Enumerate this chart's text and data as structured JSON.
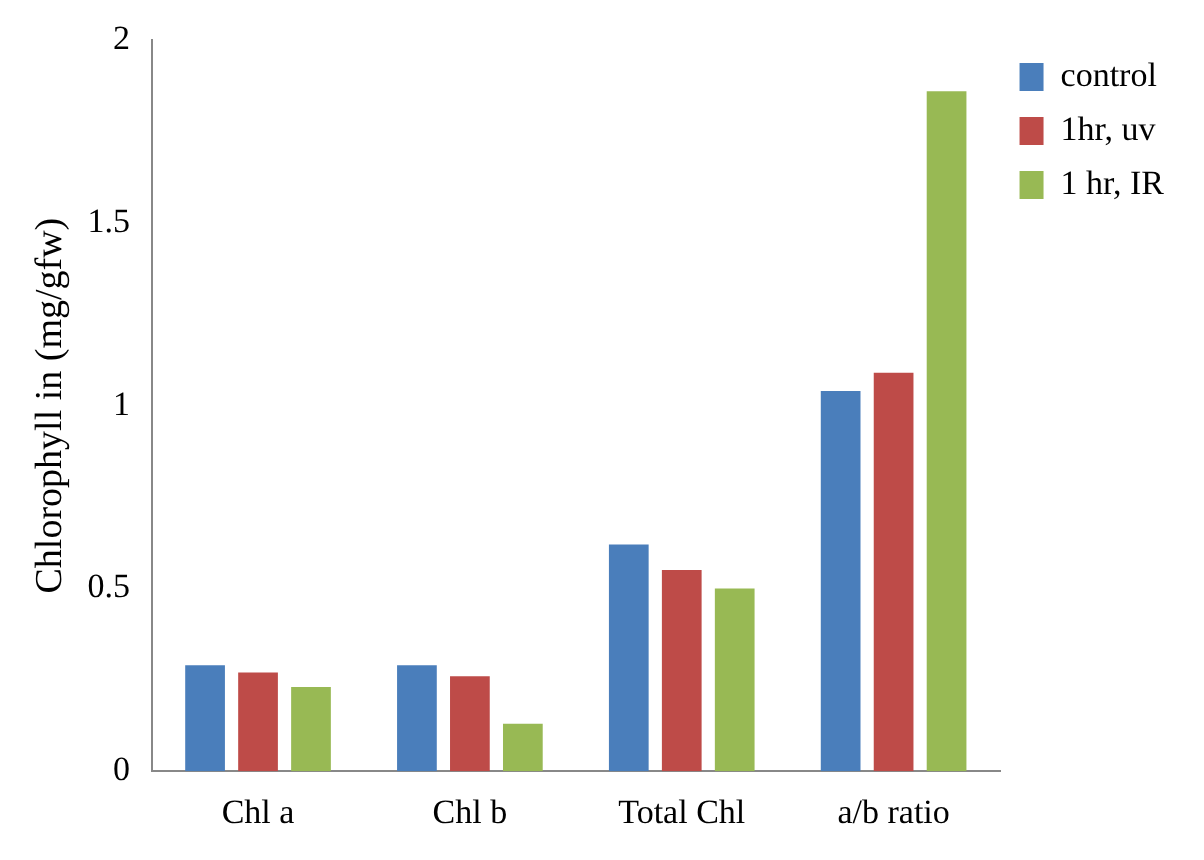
{
  "chart_data": {
    "type": "bar",
    "ylabel": "Chlorophyll in (mg/gfw)",
    "categories": [
      "Chl a",
      "Chl b",
      "Total Chl",
      "a/b ratio"
    ],
    "series": [
      {
        "name": "control",
        "color": "#4a7ebb",
        "values": [
          0.29,
          0.29,
          0.62,
          1.04
        ]
      },
      {
        "name": "1hr, uv",
        "color": "#be4b48",
        "values": [
          0.27,
          0.26,
          0.55,
          1.09
        ]
      },
      {
        "name": "1 hr, IR",
        "color": "#98b954",
        "values": [
          0.23,
          0.13,
          0.5,
          1.86
        ]
      }
    ],
    "ylim": [
      0,
      2
    ],
    "yticks": [
      0,
      0.5,
      1,
      1.5,
      2
    ],
    "grid": false,
    "legend": "top right"
  }
}
